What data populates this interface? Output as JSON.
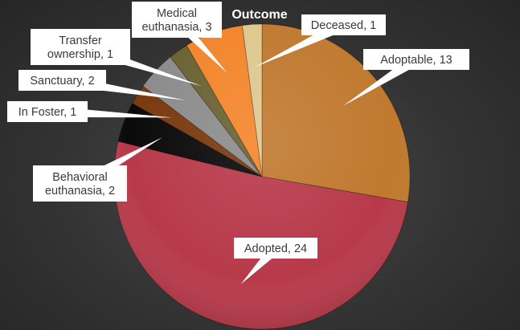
{
  "chart_data": {
    "type": "pie",
    "title": "Outcome",
    "start_angle_deg": 0,
    "direction": "clockwise",
    "slices": [
      {
        "label": "Adoptable",
        "value": 13,
        "color": "#c0792f"
      },
      {
        "label": "Adopted",
        "value": 24,
        "color": "#b83a4a"
      },
      {
        "label": "Behavioral euthanasia",
        "value": 2,
        "color": "#0a0a0a"
      },
      {
        "label": "In Foster",
        "value": 1,
        "color": "#7a3a0e"
      },
      {
        "label": "Sanctuary",
        "value": 2,
        "color": "#8c8c8c"
      },
      {
        "label": "Transfer ownership",
        "value": 1,
        "color": "#6b6234"
      },
      {
        "label": "Medical euthanasia",
        "value": 3,
        "color": "#f3852b"
      },
      {
        "label": "Deceased",
        "value": 1,
        "color": "#ddc88e"
      }
    ]
  },
  "data_labels": [
    [
      "Adoptable, 13"
    ],
    [
      "Adopted, 24"
    ],
    [
      "Behavioral",
      "euthanasia, 2"
    ],
    [
      "In Foster, 1"
    ],
    [
      "Sanctuary, 2"
    ],
    [
      "Transfer",
      "ownership, 1"
    ],
    [
      "Medical",
      "euthanasia, 3"
    ],
    [
      "Deceased, 1"
    ]
  ]
}
